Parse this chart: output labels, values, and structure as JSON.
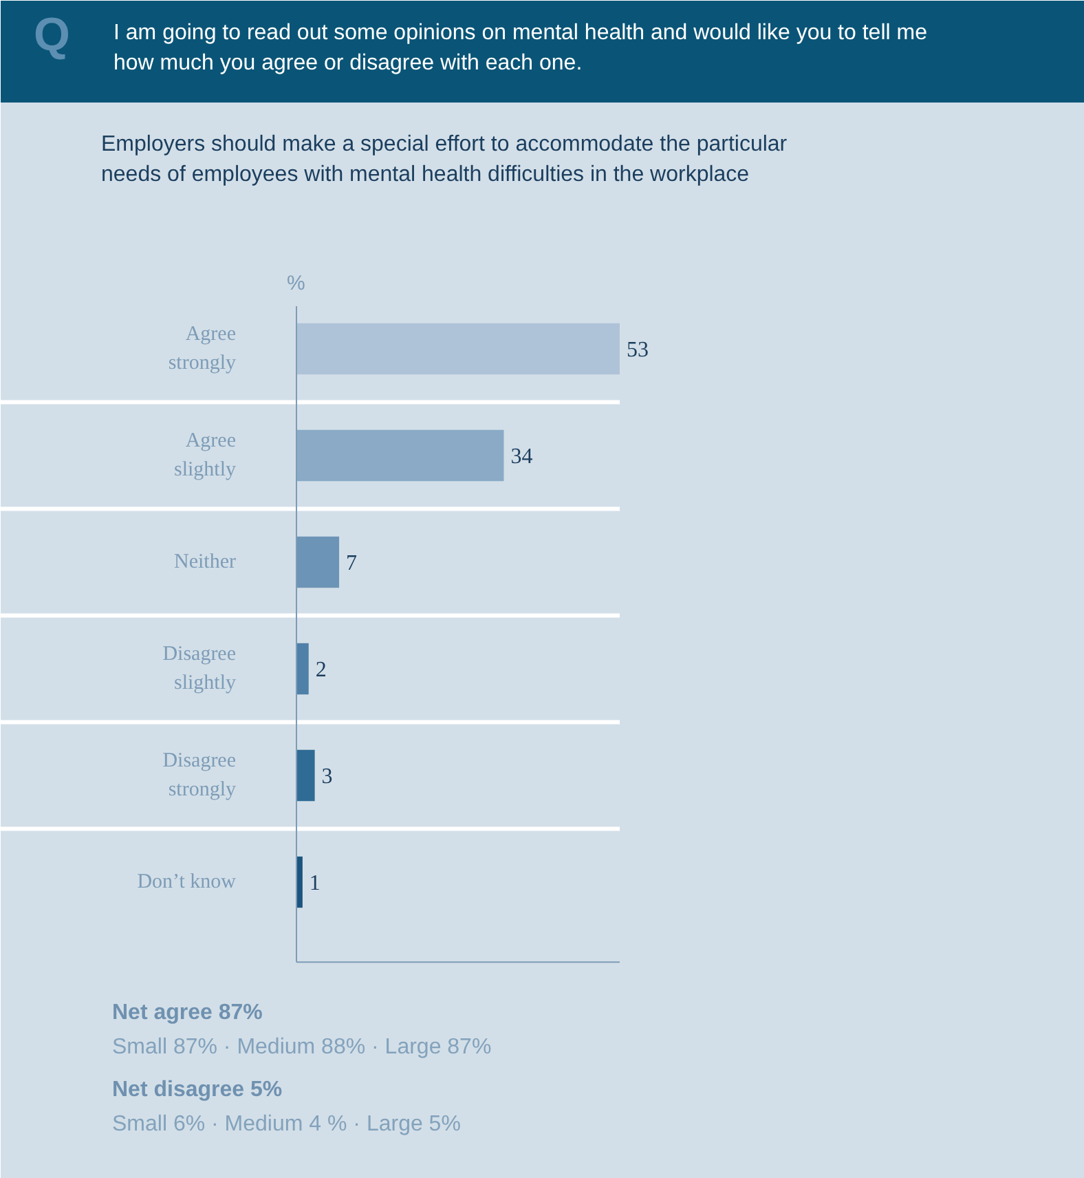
{
  "chart_data": {
    "type": "bar",
    "orientation": "horizontal",
    "title": "I am going to read out some opinions on mental health and would like you to tell me\nhow much you agree or disagree with each one.",
    "subtitle": "Employers should make a special effort to accommodate the particular\nneeds of employees with mental health difficulties in the workplace",
    "xlabel": "%",
    "categories": [
      "Agree\nstrongly",
      "Agree\nslightly",
      "Neither",
      "Disagree\nslightly",
      "Disagree\nstrongly",
      "Don’t know"
    ],
    "values": [
      53,
      34,
      7,
      2,
      3,
      1
    ],
    "colors": [
      "#aec3d7",
      "#8aaac6",
      "#6c94b6",
      "#4f80a8",
      "#2f6b95",
      "#1b557f"
    ],
    "data_labels": true,
    "tick_labels": "y",
    "grid": "y",
    "annotations": [
      "Q",
      "Net agree 87%",
      "Small  87% · Medium 88% · Large  87%",
      "Net disagree  5%",
      "Small  6% · Medium 4 % · Large  5%"
    ]
  }
}
